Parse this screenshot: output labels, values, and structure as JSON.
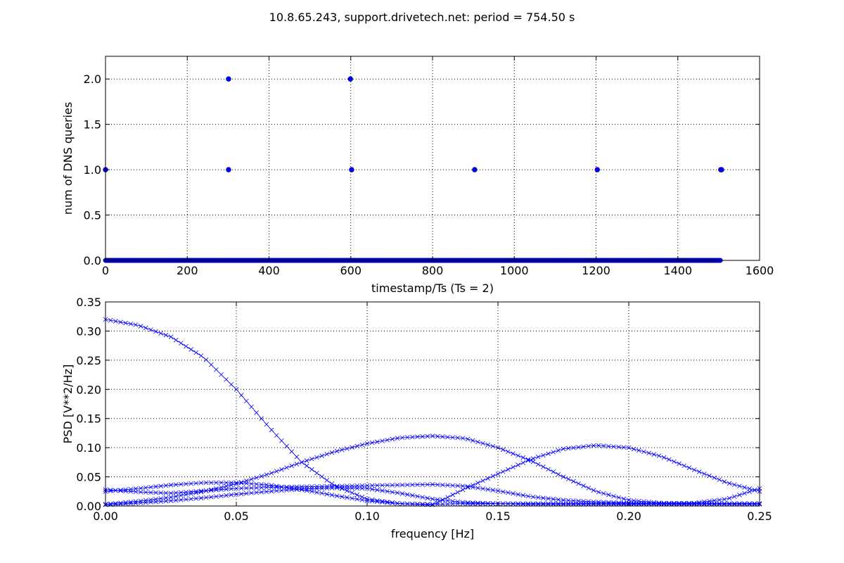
{
  "title": "10.8.65.243, support.drivetech.net: period = 754.50 s",
  "colors": {
    "series": "#0000ff",
    "marker_edge": "#000080",
    "grid": "#000000",
    "axes": "#000000"
  },
  "chart_data": [
    {
      "type": "scatter",
      "xlabel": "timestamp/Ts (Ts = 2)",
      "ylabel": "num of DNS queries",
      "xlim": [
        0,
        1600
      ],
      "ylim": [
        0,
        2.25
      ],
      "xticks": [
        0,
        200,
        400,
        600,
        800,
        1000,
        1200,
        1400,
        1600
      ],
      "xtick_labels": [
        "0",
        "200",
        "400",
        "600",
        "800",
        "1000",
        "1200",
        "1400",
        "1600"
      ],
      "yticks": [
        0.0,
        0.5,
        1.0,
        1.5,
        2.0
      ],
      "ytick_labels": [
        "0.0",
        "0.5",
        "1.0",
        "1.5",
        "2.0"
      ],
      "grid": true,
      "marker": "circle",
      "baseline": {
        "y": 0,
        "x_start": 0,
        "x_end": 1505,
        "step": 1
      },
      "points": [
        {
          "x": 0,
          "y": 1
        },
        {
          "x": 301,
          "y": 1
        },
        {
          "x": 301,
          "y": 2
        },
        {
          "x": 599,
          "y": 2
        },
        {
          "x": 602,
          "y": 1
        },
        {
          "x": 903,
          "y": 1
        },
        {
          "x": 1203,
          "y": 1
        },
        {
          "x": 1505,
          "y": 1
        },
        {
          "x": 1507,
          "y": 1
        }
      ]
    },
    {
      "type": "line",
      "xlabel": "frequency [Hz]",
      "ylabel": "PSD [V**2/Hz]",
      "xlim": [
        0,
        0.25
      ],
      "ylim": [
        0,
        0.35
      ],
      "xticks": [
        0.0,
        0.05,
        0.1,
        0.15,
        0.2,
        0.25
      ],
      "xtick_labels": [
        "0.00",
        "0.05",
        "0.10",
        "0.15",
        "0.20",
        "0.25"
      ],
      "yticks": [
        0.0,
        0.05,
        0.1,
        0.15,
        0.2,
        0.25,
        0.3,
        0.35
      ],
      "ytick_labels": [
        "0.00",
        "0.05",
        "0.10",
        "0.15",
        "0.20",
        "0.25",
        "0.30",
        "0.35"
      ],
      "grid": true,
      "marker": "x",
      "x": [
        0.0,
        0.0125,
        0.025,
        0.0375,
        0.05,
        0.0625,
        0.075,
        0.0875,
        0.1,
        0.1125,
        0.125,
        0.1375,
        0.15,
        0.1625,
        0.175,
        0.1875,
        0.2,
        0.2125,
        0.225,
        0.2375,
        0.25
      ],
      "series": [
        {
          "values": [
            0.32,
            0.31,
            0.29,
            0.255,
            0.2,
            0.135,
            0.075,
            0.035,
            0.012,
            0.004,
            0.003,
            0.004,
            0.004,
            0.004,
            0.004,
            0.004,
            0.004,
            0.004,
            0.004,
            0.004,
            0.004
          ]
        },
        {
          "values": [
            0.025,
            0.03,
            0.036,
            0.04,
            0.04,
            0.036,
            0.028,
            0.018,
            0.009,
            0.004,
            0.002,
            0.03,
            0.055,
            0.08,
            0.098,
            0.104,
            0.1,
            0.085,
            0.062,
            0.04,
            0.025
          ]
        },
        {
          "values": [
            0.003,
            0.008,
            0.015,
            0.025,
            0.038,
            0.055,
            0.075,
            0.093,
            0.107,
            0.117,
            0.12,
            0.116,
            0.1,
            0.078,
            0.05,
            0.025,
            0.01,
            0.005,
            0.005,
            0.012,
            0.03
          ]
        },
        {
          "values": [
            0.028,
            0.024,
            0.022,
            0.026,
            0.03,
            0.032,
            0.033,
            0.034,
            0.035,
            0.036,
            0.037,
            0.034,
            0.026,
            0.016,
            0.01,
            0.007,
            0.005,
            0.004,
            0.004,
            0.004,
            0.004
          ]
        },
        {
          "values": [
            0.002,
            0.005,
            0.009,
            0.014,
            0.02,
            0.025,
            0.029,
            0.031,
            0.03,
            0.022,
            0.012,
            0.006,
            0.004,
            0.003,
            0.003,
            0.003,
            0.003,
            0.003,
            0.003,
            0.003,
            0.003
          ]
        }
      ]
    }
  ]
}
